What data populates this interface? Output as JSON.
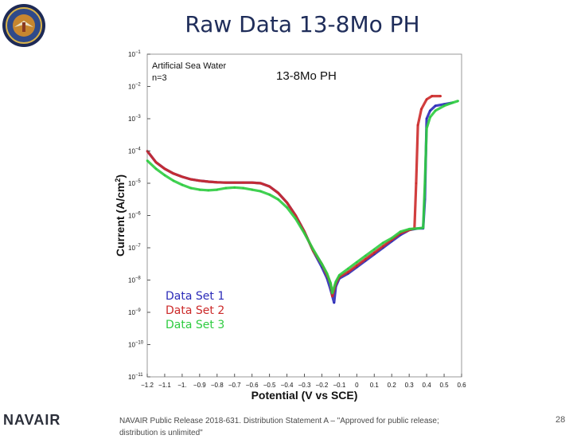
{
  "slide": {
    "title": "Raw Data 13-8Mo PH",
    "footer_brand": "NAVAIR",
    "footer_text": "NAVAIR Public Release 2018-631. Distribution Statement A – \"Approved for public release; distribution is unlimited\"",
    "page_number": "28"
  },
  "chart_data": {
    "type": "scatter",
    "title": "13-8Mo PH",
    "annotation": [
      "Artificial Sea Water",
      "n=3"
    ],
    "xlabel": "Potential (V vs SCE)",
    "ylabel": "Current (A/cm",
    "ylabel_sup": "2",
    "ylabel_close": ")",
    "xlim": [
      -1.2,
      0.6
    ],
    "ylim_log10": [
      -11,
      -1
    ],
    "y_scale": "log",
    "grid": false,
    "legend_position": "bottom-left",
    "xticks": [
      "-1.2",
      "-1.1",
      "-1.",
      "-0.9",
      "-0.8",
      "-0.7",
      "-0.6",
      "-0.5",
      "-0.4",
      "-0.3",
      "-0.2",
      "-0.1",
      "0",
      "0.1",
      "0.2",
      "0.3",
      "0.4",
      "0.5",
      "0.6"
    ],
    "xtick_values": [
      -1.2,
      -1.1,
      -1.0,
      -0.9,
      -0.8,
      -0.7,
      -0.6,
      -0.5,
      -0.4,
      -0.3,
      -0.2,
      -0.1,
      0,
      0.1,
      0.2,
      0.3,
      0.4,
      0.5,
      0.6
    ],
    "ytick_exponents": [
      -1,
      -2,
      -3,
      -4,
      -5,
      -6,
      -7,
      -8,
      -9,
      -10,
      -11
    ],
    "ytick_base": "10",
    "series": [
      {
        "name": "Data Set 1",
        "color": "#2b2bb8",
        "points": [
          [
            -1.2,
            -4.0
          ],
          [
            -1.15,
            -4.35
          ],
          [
            -1.1,
            -4.55
          ],
          [
            -1.05,
            -4.7
          ],
          [
            -1.0,
            -4.8
          ],
          [
            -0.95,
            -4.88
          ],
          [
            -0.9,
            -4.92
          ],
          [
            -0.85,
            -4.95
          ],
          [
            -0.8,
            -4.97
          ],
          [
            -0.75,
            -4.98
          ],
          [
            -0.7,
            -4.98
          ],
          [
            -0.65,
            -4.98
          ],
          [
            -0.6,
            -4.98
          ],
          [
            -0.55,
            -5.0
          ],
          [
            -0.5,
            -5.1
          ],
          [
            -0.45,
            -5.3
          ],
          [
            -0.4,
            -5.6
          ],
          [
            -0.35,
            -6.0
          ],
          [
            -0.3,
            -6.5
          ],
          [
            -0.25,
            -7.1
          ],
          [
            -0.2,
            -7.6
          ],
          [
            -0.17,
            -7.95
          ],
          [
            -0.15,
            -8.3
          ],
          [
            -0.13,
            -8.7
          ],
          [
            -0.12,
            -8.2
          ],
          [
            -0.1,
            -7.95
          ],
          [
            -0.05,
            -7.8
          ],
          [
            0.0,
            -7.6
          ],
          [
            0.05,
            -7.4
          ],
          [
            0.1,
            -7.2
          ],
          [
            0.15,
            -7.0
          ],
          [
            0.2,
            -6.8
          ],
          [
            0.25,
            -6.6
          ],
          [
            0.3,
            -6.45
          ],
          [
            0.35,
            -6.4
          ],
          [
            0.38,
            -6.4
          ],
          [
            0.39,
            -5.5
          ],
          [
            0.4,
            -3.0
          ],
          [
            0.42,
            -2.75
          ],
          [
            0.45,
            -2.6
          ],
          [
            0.5,
            -2.55
          ],
          [
            0.55,
            -2.5
          ]
        ]
      },
      {
        "name": "Data Set 2",
        "color": "#cc2a2a",
        "points": [
          [
            -1.2,
            -4.0
          ],
          [
            -1.15,
            -4.35
          ],
          [
            -1.1,
            -4.55
          ],
          [
            -1.05,
            -4.7
          ],
          [
            -1.0,
            -4.8
          ],
          [
            -0.95,
            -4.88
          ],
          [
            -0.9,
            -4.92
          ],
          [
            -0.85,
            -4.95
          ],
          [
            -0.8,
            -4.97
          ],
          [
            -0.75,
            -4.98
          ],
          [
            -0.7,
            -4.98
          ],
          [
            -0.65,
            -4.98
          ],
          [
            -0.6,
            -4.98
          ],
          [
            -0.55,
            -5.0
          ],
          [
            -0.5,
            -5.1
          ],
          [
            -0.45,
            -5.3
          ],
          [
            -0.4,
            -5.6
          ],
          [
            -0.35,
            -6.0
          ],
          [
            -0.3,
            -6.5
          ],
          [
            -0.25,
            -7.1
          ],
          [
            -0.2,
            -7.5
          ],
          [
            -0.17,
            -7.85
          ],
          [
            -0.15,
            -8.1
          ],
          [
            -0.14,
            -8.5
          ],
          [
            -0.12,
            -8.1
          ],
          [
            -0.1,
            -7.9
          ],
          [
            -0.05,
            -7.75
          ],
          [
            0.0,
            -7.55
          ],
          [
            0.05,
            -7.35
          ],
          [
            0.1,
            -7.15
          ],
          [
            0.15,
            -6.95
          ],
          [
            0.2,
            -6.75
          ],
          [
            0.25,
            -6.55
          ],
          [
            0.3,
            -6.45
          ],
          [
            0.33,
            -6.4
          ],
          [
            0.34,
            -5.0
          ],
          [
            0.35,
            -3.2
          ],
          [
            0.37,
            -2.7
          ],
          [
            0.4,
            -2.4
          ],
          [
            0.43,
            -2.3
          ],
          [
            0.48,
            -2.3
          ]
        ]
      },
      {
        "name": "Data Set 3",
        "color": "#2ecc40",
        "points": [
          [
            -1.2,
            -4.3
          ],
          [
            -1.15,
            -4.55
          ],
          [
            -1.1,
            -4.75
          ],
          [
            -1.05,
            -4.92
          ],
          [
            -1.0,
            -5.05
          ],
          [
            -0.95,
            -5.15
          ],
          [
            -0.9,
            -5.2
          ],
          [
            -0.85,
            -5.22
          ],
          [
            -0.8,
            -5.2
          ],
          [
            -0.75,
            -5.15
          ],
          [
            -0.7,
            -5.13
          ],
          [
            -0.65,
            -5.15
          ],
          [
            -0.6,
            -5.2
          ],
          [
            -0.55,
            -5.25
          ],
          [
            -0.5,
            -5.35
          ],
          [
            -0.45,
            -5.5
          ],
          [
            -0.4,
            -5.75
          ],
          [
            -0.35,
            -6.1
          ],
          [
            -0.3,
            -6.55
          ],
          [
            -0.25,
            -7.05
          ],
          [
            -0.2,
            -7.5
          ],
          [
            -0.17,
            -7.8
          ],
          [
            -0.15,
            -8.1
          ],
          [
            -0.14,
            -8.4
          ],
          [
            -0.12,
            -8.05
          ],
          [
            -0.1,
            -7.85
          ],
          [
            -0.05,
            -7.65
          ],
          [
            0.0,
            -7.45
          ],
          [
            0.05,
            -7.25
          ],
          [
            0.1,
            -7.05
          ],
          [
            0.15,
            -6.85
          ],
          [
            0.2,
            -6.7
          ],
          [
            0.25,
            -6.5
          ],
          [
            0.3,
            -6.42
          ],
          [
            0.35,
            -6.4
          ],
          [
            0.38,
            -6.38
          ],
          [
            0.39,
            -5.0
          ],
          [
            0.4,
            -3.3
          ],
          [
            0.42,
            -2.95
          ],
          [
            0.45,
            -2.75
          ],
          [
            0.5,
            -2.6
          ],
          [
            0.55,
            -2.5
          ],
          [
            0.58,
            -2.45
          ]
        ]
      }
    ]
  }
}
